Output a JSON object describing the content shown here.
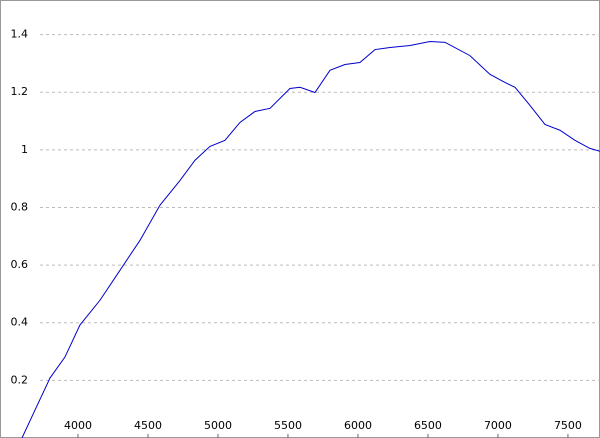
{
  "chart_data": {
    "type": "line",
    "x": [
      3600,
      3693,
      3800,
      3907,
      4014,
      4157,
      4300,
      4443,
      4586,
      4729,
      4836,
      4943,
      5050,
      5157,
      5264,
      5372,
      5514,
      5586,
      5693,
      5800,
      5907,
      6014,
      6122,
      6229,
      6372,
      6514,
      6622,
      6800,
      6943,
      7050,
      7122,
      7229,
      7336,
      7443,
      7550,
      7657,
      7729
    ],
    "series": [
      {
        "color": "#0000cc",
        "values": [
          0,
          0.097,
          0.208,
          0.281,
          0.392,
          0.478,
          0.582,
          0.686,
          0.808,
          0.894,
          0.964,
          1.012,
          1.033,
          1.095,
          1.133,
          1.144,
          1.213,
          1.217,
          1.199,
          1.276,
          1.296,
          1.303,
          1.348,
          1.355,
          1.362,
          1.376,
          1.373,
          1.327,
          1.262,
          1.234,
          1.217,
          1.154,
          1.088,
          1.068,
          1.033,
          1.005,
          0.995
        ]
      }
    ],
    "xlim": [
      3443,
      7729
    ],
    "ylim": [
      0,
      1.52
    ],
    "xticks": [
      4000,
      4500,
      5000,
      5500,
      6000,
      6500,
      7000,
      7500
    ],
    "yticks": [
      0.2,
      0.4,
      0.6,
      0.8,
      1,
      1.2,
      1.4
    ],
    "grid": true
  }
}
